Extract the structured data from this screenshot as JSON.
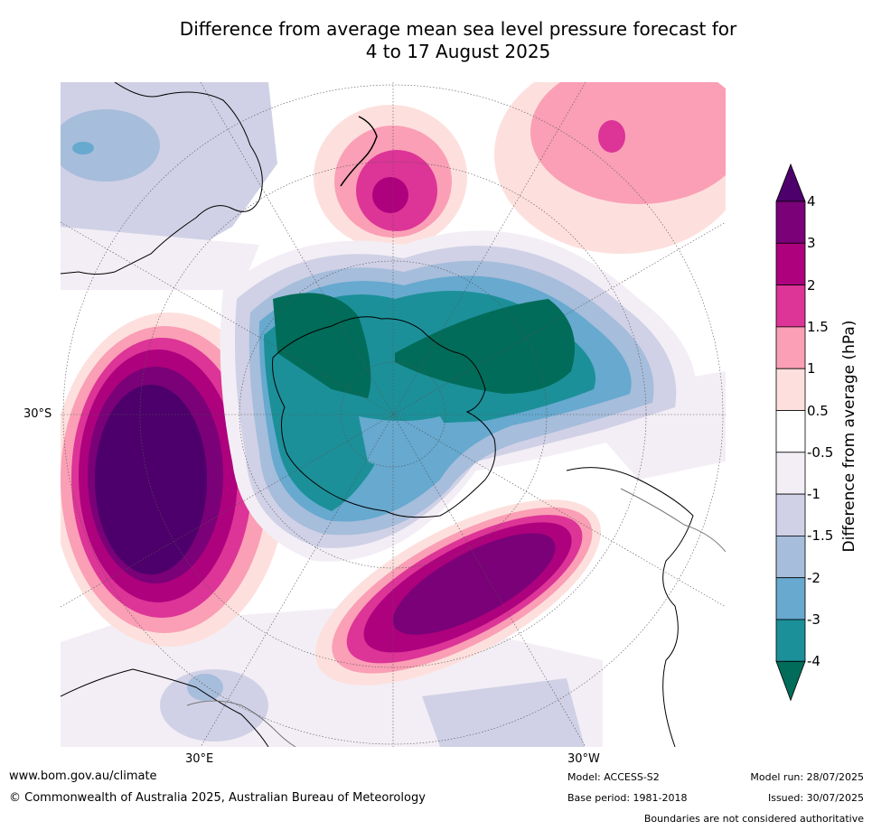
{
  "title_line1": "Difference from average mean sea level pressure forecast for",
  "title_line2": "4 to 17 August 2025",
  "map": {
    "lat_label": "30°S",
    "lon_labels": [
      "30°E",
      "30°W"
    ]
  },
  "colorbar": {
    "label": "Difference from average (hPa)",
    "ticks": [
      "4",
      "3",
      "2",
      "1.5",
      "1",
      "0.5",
      "-0.5",
      "-1",
      "-1.5",
      "-2",
      "-3",
      "-4"
    ],
    "colors": [
      "#4d006b",
      "#7a0177",
      "#ae017e",
      "#dd3497",
      "#fa9fb5",
      "#fde0dd",
      "#ffffff",
      "#f3eef5",
      "#d0d1e6",
      "#a6bddb",
      "#67a9cf",
      "#1c9099",
      "#016c59"
    ]
  },
  "footer": {
    "website": "www.bom.gov.au/climate",
    "copyright": "© Commonwealth of Australia 2025, Australian Bureau of Meteorology",
    "model": "Model: ACCESS-S2",
    "base_period": "Base period: 1981-2018",
    "model_run": "Model run: 28/07/2025",
    "issued": "Issued: 30/07/2025",
    "disclaimer": "Boundaries are not considered authoritative"
  }
}
